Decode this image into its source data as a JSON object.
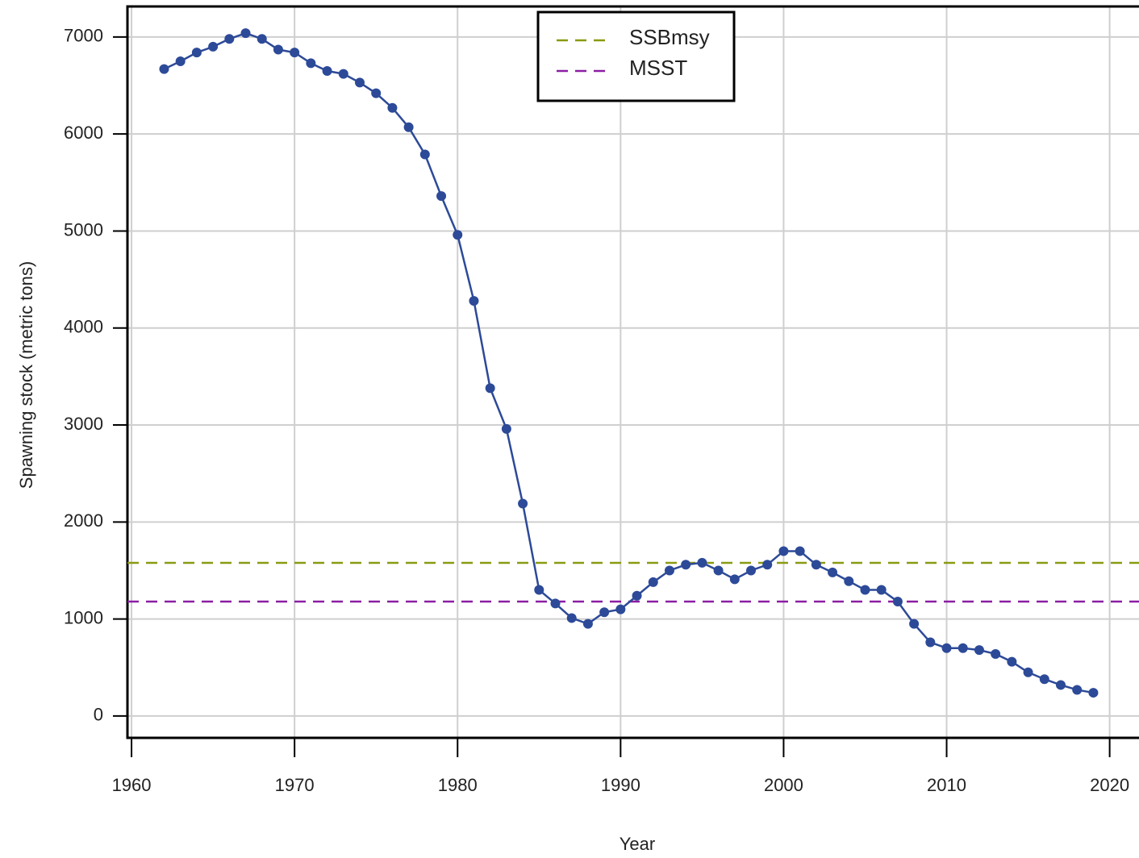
{
  "chart_data": {
    "type": "line",
    "x_label": "Year",
    "y_label": "Spawning stock (metric tons)",
    "x": [
      1962,
      1963,
      1964,
      1965,
      1966,
      1967,
      1968,
      1969,
      1970,
      1971,
      1972,
      1973,
      1974,
      1975,
      1976,
      1977,
      1978,
      1979,
      1980,
      1981,
      1982,
      1983,
      1984,
      1985,
      1986,
      1987,
      1988,
      1989,
      1990,
      1991,
      1992,
      1993,
      1994,
      1995,
      1996,
      1997,
      1998,
      1999,
      2000,
      2001,
      2002,
      2003,
      2004,
      2005,
      2006,
      2007,
      2008,
      2009,
      2010,
      2011,
      2012,
      2013,
      2014,
      2015,
      2016,
      2017,
      2018,
      2019
    ],
    "series": [
      {
        "color": "#2d4a98",
        "values": [
          6670,
          6750,
          6840,
          6900,
          6980,
          7040,
          6980,
          6870,
          6840,
          6730,
          6650,
          6620,
          6530,
          6420,
          6270,
          6070,
          5790,
          5360,
          4960,
          4280,
          3380,
          2960,
          2190,
          1300,
          1160,
          1010,
          950,
          1070,
          1100,
          1240,
          1380,
          1500,
          1560,
          1580,
          1500,
          1410,
          1500,
          1560,
          1700,
          1700,
          1560,
          1480,
          1390,
          1300,
          1300,
          1180,
          950,
          760,
          700,
          700,
          680,
          640,
          560,
          450,
          380,
          320,
          270,
          240
        ]
      }
    ],
    "hlines": [
      {
        "name": "SSBmsy",
        "color": "#8a9a12",
        "value": 1579
      },
      {
        "name": "MSST",
        "color": "#8b1ea3",
        "value": 1180
      }
    ],
    "xlim": [
      1959.75,
      2021.8
    ],
    "ylim": [
      -225,
      7315
    ],
    "xticks": [
      1960,
      1970,
      1980,
      1990,
      2000,
      2010,
      2020
    ],
    "yticks": [
      0,
      1000,
      2000,
      3000,
      4000,
      5000,
      6000,
      7000
    ],
    "grid": true,
    "legend": "top"
  }
}
